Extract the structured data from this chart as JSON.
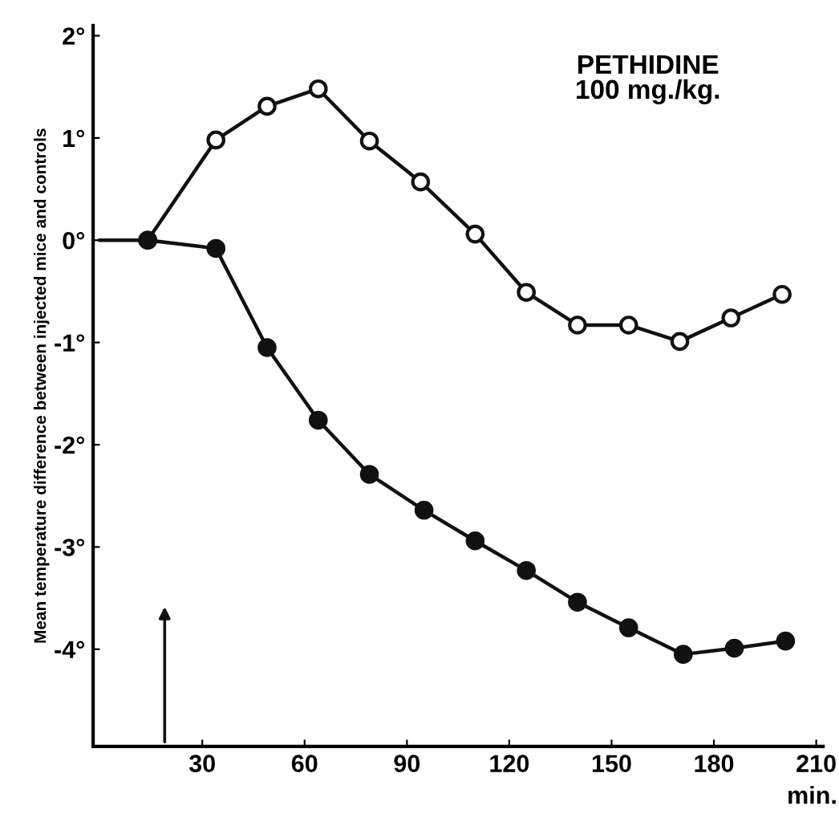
{
  "chart_data": {
    "type": "line",
    "ylabel": "Mean temperature difference between injected mice and controls",
    "xlabel": "min.",
    "annotations": [
      "PETHIDINE\n100 mg./kg."
    ],
    "series": [
      {
        "color": "#111111",
        "marker": "circle",
        "colors": [
          "#ffffff",
          "#ffffff",
          "#ffffff",
          "#ffffff",
          "#ffffff",
          "#ffffff",
          "#ffffff",
          "#ffffff",
          "#ffffff",
          "#ffffff",
          "#ffffff",
          "#ffffff",
          "#ffffff"
        ],
        "x": [
          14,
          34,
          49,
          64,
          79,
          94,
          110,
          125,
          140,
          155,
          170,
          185,
          200
        ],
        "values": [
          0,
          0.98,
          1.31,
          1.48,
          0.97,
          0.57,
          0.06,
          -0.51,
          -0.83,
          -0.83,
          -0.99,
          -0.76,
          -0.53
        ]
      },
      {
        "color": "#111111",
        "marker": "circle",
        "x": [
          14,
          34,
          49,
          64,
          79,
          95,
          110,
          125,
          140,
          155,
          171,
          186,
          201
        ],
        "values": [
          0,
          -0.08,
          -1.05,
          -1.76,
          -2.29,
          -2.64,
          -2.94,
          -3.23,
          -3.54,
          -3.79,
          -4.05,
          -3.99,
          -3.92
        ]
      },
      {
        "color": "#111111",
        "marker": "none",
        "x": [
          0,
          14
        ],
        "values": [
          0,
          0
        ]
      }
    ],
    "xlim": [
      -2,
      212
    ],
    "ylim": [
      -4.95,
      2.1
    ],
    "xticks": [
      30,
      60,
      90,
      120,
      150,
      180,
      210
    ],
    "yticks": [
      {
        "value": 2,
        "label": "2°"
      },
      {
        "value": 1,
        "label": "1°"
      },
      {
        "value": 0,
        "label": "0°"
      },
      {
        "value": -1,
        "label": "-1°"
      },
      {
        "value": -2,
        "label": "-2°"
      },
      {
        "value": -3,
        "label": "-3°"
      },
      {
        "value": -4,
        "label": "-4°"
      }
    ],
    "grid": false,
    "legend": false
  }
}
